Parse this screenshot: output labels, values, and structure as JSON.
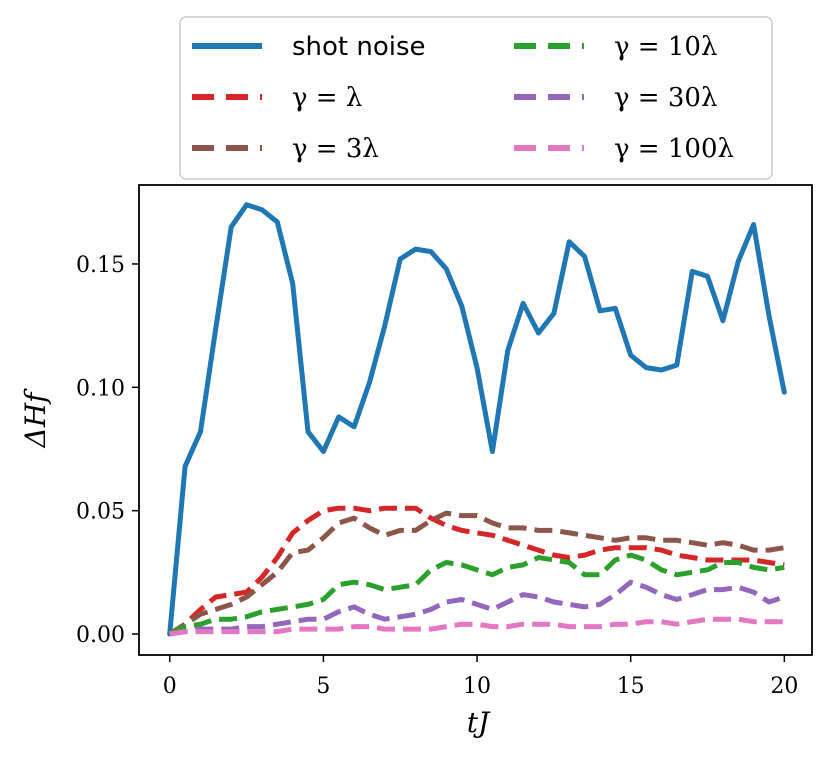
{
  "chart_data": {
    "type": "line",
    "title": "",
    "xlabel": "tJ",
    "ylabel": "ΔH_f",
    "ylabel_display": "ΔHf",
    "xlim": [
      -1.0,
      20.9
    ],
    "ylim": [
      -0.0085,
      0.182
    ],
    "xticks": [
      0,
      5,
      10,
      15,
      20
    ],
    "xtick_labels": [
      "0",
      "5",
      "10",
      "15",
      "20"
    ],
    "yticks": [
      0.0,
      0.05,
      0.1,
      0.15
    ],
    "ytick_labels": [
      "0.00",
      "0.05",
      "0.10",
      "0.15"
    ],
    "grid": false,
    "legend_position": "top (outside, two columns)",
    "x": [
      0,
      0.5,
      1,
      1.5,
      2,
      2.5,
      3,
      3.5,
      4,
      4.5,
      5,
      5.5,
      6,
      6.5,
      7,
      7.5,
      8,
      8.5,
      9,
      9.5,
      10,
      10.5,
      11,
      11.5,
      12,
      12.5,
      13,
      13.5,
      14,
      14.5,
      15,
      15.5,
      16,
      16.5,
      17,
      17.5,
      18,
      18.5,
      19,
      19.5,
      20
    ],
    "series": [
      {
        "name": "shot noise",
        "color": "#1f77b4",
        "style": "solid",
        "values": [
          0.0,
          0.068,
          0.082,
          0.124,
          0.165,
          0.174,
          0.172,
          0.167,
          0.142,
          0.082,
          0.074,
          0.088,
          0.084,
          0.102,
          0.125,
          0.152,
          0.156,
          0.155,
          0.148,
          0.133,
          0.108,
          0.074,
          0.115,
          0.134,
          0.122,
          0.13,
          0.159,
          0.153,
          0.131,
          0.132,
          0.113,
          0.108,
          0.107,
          0.109,
          0.147,
          0.145,
          0.127,
          0.151,
          0.166,
          0.129,
          0.098
        ]
      },
      {
        "name": "γ = λ",
        "color": "#d62728",
        "style": "dashed",
        "values": [
          0.0,
          0.004,
          0.01,
          0.015,
          0.016,
          0.017,
          0.023,
          0.031,
          0.041,
          0.046,
          0.05,
          0.051,
          0.051,
          0.05,
          0.051,
          0.051,
          0.051,
          0.047,
          0.044,
          0.042,
          0.041,
          0.04,
          0.038,
          0.036,
          0.034,
          0.032,
          0.031,
          0.032,
          0.034,
          0.035,
          0.035,
          0.035,
          0.034,
          0.032,
          0.031,
          0.03,
          0.03,
          0.03,
          0.03,
          0.029,
          0.028
        ]
      },
      {
        "name": "γ = 3λ",
        "color": "#8c564b",
        "style": "dashed",
        "values": [
          0.0,
          0.004,
          0.008,
          0.01,
          0.012,
          0.015,
          0.02,
          0.025,
          0.033,
          0.034,
          0.039,
          0.045,
          0.047,
          0.043,
          0.04,
          0.042,
          0.042,
          0.046,
          0.049,
          0.048,
          0.048,
          0.045,
          0.043,
          0.043,
          0.042,
          0.042,
          0.041,
          0.04,
          0.039,
          0.038,
          0.039,
          0.039,
          0.038,
          0.038,
          0.037,
          0.036,
          0.037,
          0.036,
          0.034,
          0.034,
          0.035
        ]
      },
      {
        "name": "γ = 10λ",
        "color": "#2ca02c",
        "style": "dashed",
        "values": [
          0.0,
          0.003,
          0.004,
          0.006,
          0.006,
          0.007,
          0.009,
          0.01,
          0.011,
          0.012,
          0.014,
          0.02,
          0.021,
          0.02,
          0.018,
          0.019,
          0.02,
          0.026,
          0.029,
          0.028,
          0.026,
          0.024,
          0.027,
          0.028,
          0.031,
          0.03,
          0.029,
          0.024,
          0.024,
          0.03,
          0.032,
          0.03,
          0.026,
          0.024,
          0.025,
          0.026,
          0.029,
          0.029,
          0.027,
          0.026,
          0.027
        ]
      },
      {
        "name": "γ = 30λ",
        "color": "#9467bd",
        "style": "dashed",
        "values": [
          0.0,
          0.001,
          0.002,
          0.002,
          0.002,
          0.003,
          0.003,
          0.004,
          0.005,
          0.006,
          0.006,
          0.009,
          0.011,
          0.008,
          0.006,
          0.007,
          0.008,
          0.01,
          0.013,
          0.014,
          0.012,
          0.01,
          0.013,
          0.016,
          0.015,
          0.013,
          0.012,
          0.011,
          0.012,
          0.016,
          0.021,
          0.019,
          0.016,
          0.014,
          0.016,
          0.018,
          0.018,
          0.019,
          0.017,
          0.013,
          0.015
        ]
      },
      {
        "name": "γ = 100λ",
        "color": "#e377c2",
        "style": "dashed",
        "values": [
          0.0,
          0.001,
          0.001,
          0.001,
          0.001,
          0.001,
          0.001,
          0.001,
          0.002,
          0.002,
          0.002,
          0.002,
          0.003,
          0.003,
          0.002,
          0.002,
          0.002,
          0.002,
          0.003,
          0.004,
          0.004,
          0.003,
          0.003,
          0.004,
          0.004,
          0.004,
          0.003,
          0.003,
          0.003,
          0.004,
          0.004,
          0.005,
          0.005,
          0.004,
          0.005,
          0.006,
          0.006,
          0.006,
          0.005,
          0.005,
          0.005
        ]
      }
    ],
    "legend": [
      {
        "label": "shot noise",
        "series": 0
      },
      {
        "label": "γ = 10λ",
        "series": 3
      },
      {
        "label": "γ = λ",
        "series": 1
      },
      {
        "label": "γ = 30λ",
        "series": 4
      },
      {
        "label": "γ = 3λ",
        "series": 2
      },
      {
        "label": "γ = 100λ",
        "series": 5
      }
    ]
  }
}
